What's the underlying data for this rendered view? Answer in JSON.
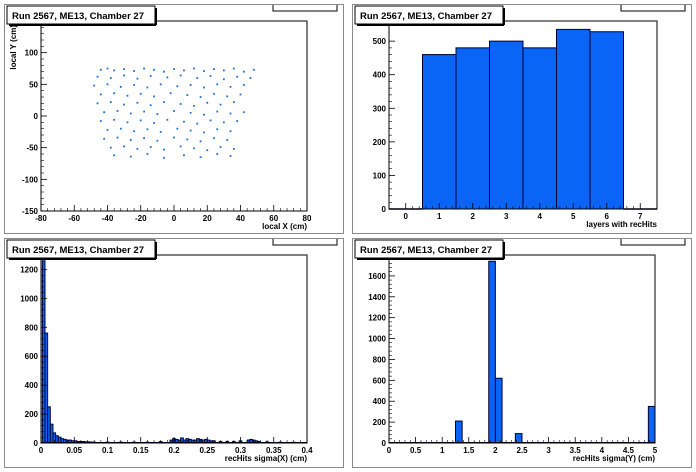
{
  "pads": [
    {
      "title": "Run 2567, ME13, Chamber 27",
      "chart_data": {
        "type": "scatter",
        "title": "Run 2567, ME13, Chamber 27",
        "xlabel": "local X (cm)",
        "ylabel": "local Y (cm)",
        "xlim": [
          -80,
          80
        ],
        "ylim": [
          -150,
          150
        ],
        "xticks": [
          -80,
          -60,
          -40,
          -20,
          0,
          20,
          40,
          60,
          80
        ],
        "yticks": [
          -150,
          -100,
          -50,
          0,
          50,
          100,
          150
        ],
        "point_color": "#1e6fd0",
        "points": [
          [
            -44,
            73
          ],
          [
            -40,
            75
          ],
          [
            -36,
            72
          ],
          [
            -30,
            74
          ],
          [
            -24,
            71
          ],
          [
            -18,
            75
          ],
          [
            -12,
            73
          ],
          [
            -6,
            70
          ],
          [
            0,
            74
          ],
          [
            6,
            72
          ],
          [
            12,
            75
          ],
          [
            18,
            71
          ],
          [
            24,
            74
          ],
          [
            30,
            72
          ],
          [
            36,
            75
          ],
          [
            42,
            70
          ],
          [
            48,
            73
          ],
          [
            -46,
            62
          ],
          [
            -38,
            60
          ],
          [
            -30,
            64
          ],
          [
            -22,
            59
          ],
          [
            -14,
            63
          ],
          [
            -4,
            61
          ],
          [
            4,
            64
          ],
          [
            14,
            60
          ],
          [
            22,
            63
          ],
          [
            30,
            58
          ],
          [
            38,
            62
          ],
          [
            46,
            60
          ],
          [
            -48,
            48
          ],
          [
            -40,
            50
          ],
          [
            -32,
            46
          ],
          [
            -24,
            49
          ],
          [
            -16,
            45
          ],
          [
            -8,
            50
          ],
          [
            2,
            47
          ],
          [
            10,
            49
          ],
          [
            18,
            45
          ],
          [
            26,
            50
          ],
          [
            34,
            46
          ],
          [
            42,
            49
          ],
          [
            -44,
            34
          ],
          [
            -36,
            36
          ],
          [
            -28,
            32
          ],
          [
            -20,
            35
          ],
          [
            -12,
            31
          ],
          [
            -2,
            36
          ],
          [
            8,
            33
          ],
          [
            16,
            30
          ],
          [
            24,
            35
          ],
          [
            32,
            31
          ],
          [
            40,
            34
          ],
          [
            -46,
            20
          ],
          [
            -38,
            22
          ],
          [
            -30,
            18
          ],
          [
            -22,
            21
          ],
          [
            -14,
            17
          ],
          [
            -6,
            22
          ],
          [
            4,
            19
          ],
          [
            12,
            16
          ],
          [
            20,
            21
          ],
          [
            28,
            18
          ],
          [
            36,
            22
          ],
          [
            -42,
            6
          ],
          [
            -34,
            8
          ],
          [
            -26,
            4
          ],
          [
            -18,
            7
          ],
          [
            -10,
            3
          ],
          [
            0,
            8
          ],
          [
            10,
            5
          ],
          [
            18,
            2
          ],
          [
            26,
            7
          ],
          [
            34,
            4
          ],
          [
            42,
            6
          ],
          [
            -44,
            -8
          ],
          [
            -36,
            -6
          ],
          [
            -28,
            -10
          ],
          [
            -20,
            -7
          ],
          [
            -12,
            -11
          ],
          [
            -4,
            -6
          ],
          [
            6,
            -9
          ],
          [
            14,
            -12
          ],
          [
            22,
            -7
          ],
          [
            30,
            -10
          ],
          [
            38,
            -8
          ],
          [
            -40,
            -22
          ],
          [
            -32,
            -20
          ],
          [
            -24,
            -24
          ],
          [
            -16,
            -21
          ],
          [
            -8,
            -25
          ],
          [
            2,
            -20
          ],
          [
            10,
            -23
          ],
          [
            18,
            -26
          ],
          [
            26,
            -21
          ],
          [
            34,
            -24
          ],
          [
            -42,
            -36
          ],
          [
            -34,
            -34
          ],
          [
            -26,
            -38
          ],
          [
            -18,
            -35
          ],
          [
            -10,
            -39
          ],
          [
            0,
            -34
          ],
          [
            8,
            -37
          ],
          [
            16,
            -40
          ],
          [
            24,
            -35
          ],
          [
            32,
            -38
          ],
          [
            -38,
            -50
          ],
          [
            -30,
            -48
          ],
          [
            -22,
            -52
          ],
          [
            -14,
            -49
          ],
          [
            -6,
            -53
          ],
          [
            4,
            -48
          ],
          [
            12,
            -51
          ],
          [
            20,
            -54
          ],
          [
            28,
            -49
          ],
          [
            36,
            -52
          ],
          [
            -36,
            -62
          ],
          [
            -26,
            -64
          ],
          [
            -16,
            -60
          ],
          [
            -6,
            -66
          ],
          [
            6,
            -62
          ],
          [
            16,
            -65
          ],
          [
            26,
            -60
          ],
          [
            34,
            -63
          ]
        ]
      }
    },
    {
      "title": "Run 2567, ME13, Chamber 27",
      "chart_data": {
        "type": "bar",
        "title": "Run 2567, ME13, Chamber 27",
        "xlabel": "layers with recHits",
        "ylabel": "",
        "xlim": [
          -0.5,
          7.5
        ],
        "ylim": [
          0,
          560
        ],
        "xticks": [
          0,
          1,
          2,
          3,
          4,
          5,
          6,
          7
        ],
        "yticks": [
          0,
          100,
          200,
          300,
          400,
          500
        ],
        "bin_width": 1,
        "bins": [
          0,
          1,
          2,
          3,
          4,
          5,
          6,
          7
        ],
        "values": [
          0,
          460,
          480,
          500,
          480,
          535,
          528,
          0
        ],
        "fill_color": "#0a64f5"
      }
    },
    {
      "title": "Run 2567, ME13, Chamber 27",
      "chart_data": {
        "type": "bar",
        "title": "Run 2567, ME13, Chamber 27",
        "xlabel": "recHits sigma(X) (cm)",
        "ylabel": "",
        "xlim": [
          0,
          0.4
        ],
        "ylim": [
          0,
          1300
        ],
        "xticks": [
          0,
          0.05,
          0.1,
          0.15,
          0.2,
          0.25,
          0.3,
          0.35,
          0.4
        ],
        "yticks": [
          0,
          200,
          400,
          600,
          800,
          1000,
          1200
        ],
        "bin_width": 0.004,
        "bins": [
          0.004,
          0.008,
          0.012,
          0.016,
          0.02,
          0.024,
          0.028,
          0.032,
          0.036,
          0.04,
          0.044,
          0.048,
          0.052,
          0.056,
          0.06,
          0.064,
          0.068,
          0.072,
          0.076,
          0.08,
          0.1,
          0.12,
          0.14,
          0.16,
          0.18,
          0.196,
          0.2,
          0.204,
          0.208,
          0.212,
          0.216,
          0.22,
          0.224,
          0.228,
          0.232,
          0.236,
          0.24,
          0.244,
          0.248,
          0.252,
          0.256,
          0.26,
          0.27,
          0.28,
          0.29,
          0.3,
          0.312,
          0.316,
          0.32,
          0.324,
          0.328,
          0.34,
          0.36,
          0.38
        ],
        "values": [
          1260,
          760,
          250,
          130,
          70,
          50,
          40,
          30,
          25,
          20,
          20,
          15,
          15,
          10,
          10,
          10,
          8,
          8,
          6,
          6,
          6,
          6,
          6,
          6,
          10,
          20,
          30,
          25,
          20,
          35,
          20,
          30,
          25,
          20,
          20,
          30,
          25,
          20,
          25,
          20,
          15,
          15,
          10,
          10,
          10,
          15,
          20,
          25,
          20,
          15,
          10,
          8,
          6,
          5
        ],
        "fill_color": "#0a64f5"
      }
    },
    {
      "title": "Run 2567, ME13, Chamber 27",
      "chart_data": {
        "type": "bar",
        "title": "Run 2567, ME13, Chamber 27",
        "xlabel": "recHits sigma(Y) (cm)",
        "ylabel": "",
        "xlim": [
          0,
          5
        ],
        "ylim": [
          0,
          1800
        ],
        "xticks": [
          0,
          0.5,
          1,
          1.5,
          2,
          2.5,
          3,
          3.5,
          4,
          4.5,
          5
        ],
        "yticks": [
          0,
          200,
          400,
          600,
          800,
          1000,
          1200,
          1400,
          1600,
          1800
        ],
        "bin_width": 0.125,
        "bins": [
          1.3125,
          1.9375,
          2.0625,
          2.4375,
          4.9375
        ],
        "values": [
          210,
          1740,
          620,
          90,
          350
        ],
        "fill_color": "#0a64f5"
      }
    }
  ]
}
